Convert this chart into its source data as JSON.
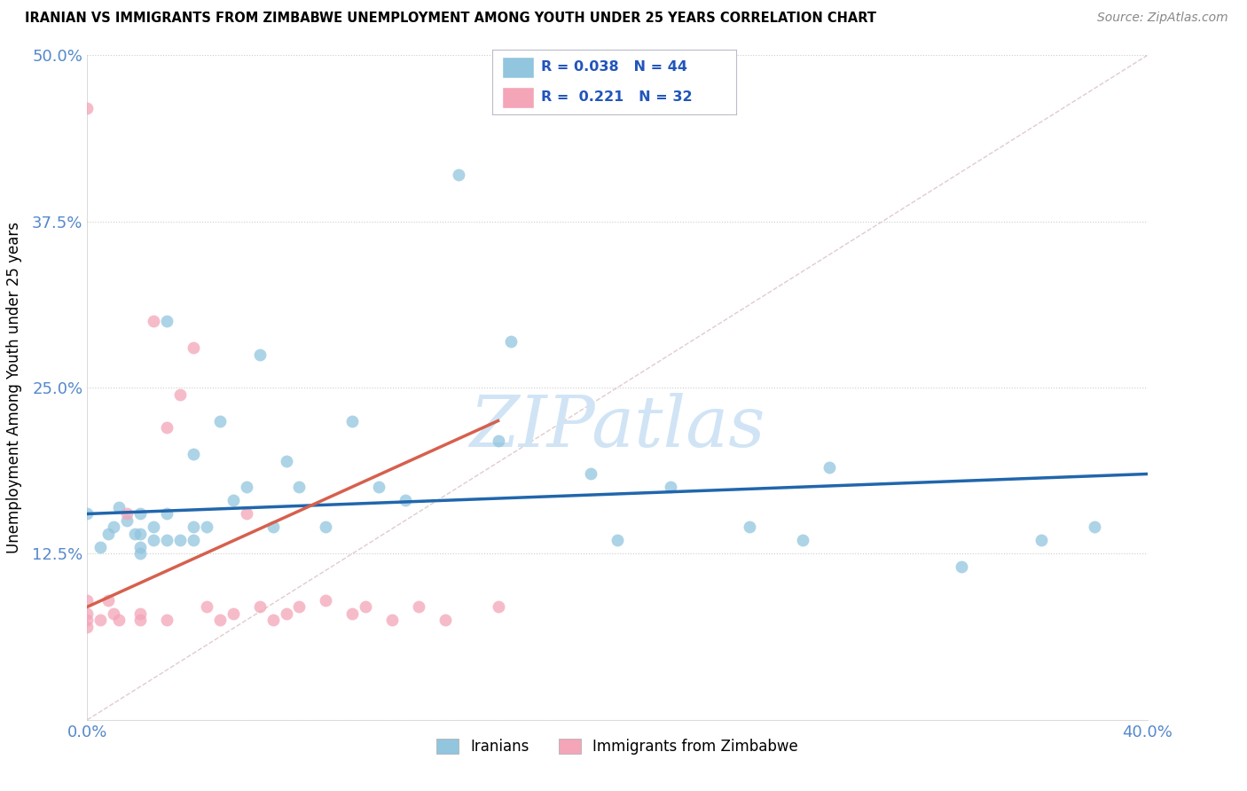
{
  "title": "IRANIAN VS IMMIGRANTS FROM ZIMBABWE UNEMPLOYMENT AMONG YOUTH UNDER 25 YEARS CORRELATION CHART",
  "source": "Source: ZipAtlas.com",
  "ylabel": "Unemployment Among Youth under 25 years",
  "xmin": 0.0,
  "xmax": 0.4,
  "ymin": 0.0,
  "ymax": 0.5,
  "xticks": [
    0.0,
    0.1,
    0.2,
    0.3,
    0.4
  ],
  "xtick_labels": [
    "0.0%",
    "",
    "",
    "",
    "40.0%"
  ],
  "ytick_labels": [
    "",
    "12.5%",
    "25.0%",
    "37.5%",
    "50.0%"
  ],
  "ytick_positions": [
    0.0,
    0.125,
    0.25,
    0.375,
    0.5
  ],
  "r_iranian": 0.038,
  "n_iranian": 44,
  "r_zimbabwe": 0.221,
  "n_zimbabwe": 32,
  "blue_color": "#92c5de",
  "pink_color": "#f4a5b8",
  "trend_blue": "#2166ac",
  "trend_pink": "#d6604d",
  "watermark_color": "#d0e4f5",
  "iranians_x": [
    0.0,
    0.005,
    0.008,
    0.01,
    0.012,
    0.015,
    0.018,
    0.02,
    0.02,
    0.02,
    0.02,
    0.025,
    0.025,
    0.03,
    0.03,
    0.03,
    0.035,
    0.04,
    0.04,
    0.04,
    0.045,
    0.05,
    0.055,
    0.06,
    0.065,
    0.07,
    0.075,
    0.08,
    0.09,
    0.1,
    0.11,
    0.12,
    0.14,
    0.155,
    0.16,
    0.19,
    0.2,
    0.22,
    0.25,
    0.27,
    0.28,
    0.33,
    0.36,
    0.38
  ],
  "iranians_y": [
    0.155,
    0.13,
    0.14,
    0.145,
    0.16,
    0.15,
    0.14,
    0.125,
    0.13,
    0.14,
    0.155,
    0.135,
    0.145,
    0.135,
    0.155,
    0.3,
    0.135,
    0.135,
    0.145,
    0.2,
    0.145,
    0.225,
    0.165,
    0.175,
    0.275,
    0.145,
    0.195,
    0.175,
    0.145,
    0.225,
    0.175,
    0.165,
    0.41,
    0.21,
    0.285,
    0.185,
    0.135,
    0.175,
    0.145,
    0.135,
    0.19,
    0.115,
    0.135,
    0.145
  ],
  "zimbabwe_x": [
    0.0,
    0.0,
    0.0,
    0.0,
    0.0,
    0.005,
    0.008,
    0.01,
    0.012,
    0.015,
    0.02,
    0.02,
    0.025,
    0.03,
    0.03,
    0.035,
    0.04,
    0.045,
    0.05,
    0.055,
    0.06,
    0.065,
    0.07,
    0.075,
    0.08,
    0.09,
    0.1,
    0.105,
    0.115,
    0.125,
    0.135,
    0.155
  ],
  "zimbabwe_y": [
    0.07,
    0.075,
    0.08,
    0.09,
    0.46,
    0.075,
    0.09,
    0.08,
    0.075,
    0.155,
    0.075,
    0.08,
    0.3,
    0.075,
    0.22,
    0.245,
    0.28,
    0.085,
    0.075,
    0.08,
    0.155,
    0.085,
    0.075,
    0.08,
    0.085,
    0.09,
    0.08,
    0.085,
    0.075,
    0.085,
    0.075,
    0.085
  ],
  "blue_trend_x0": 0.0,
  "blue_trend_x1": 0.4,
  "blue_trend_y0": 0.155,
  "blue_trend_y1": 0.185,
  "pink_trend_x0": 0.0,
  "pink_trend_x1": 0.155,
  "pink_trend_y0": 0.085,
  "pink_trend_y1": 0.225
}
